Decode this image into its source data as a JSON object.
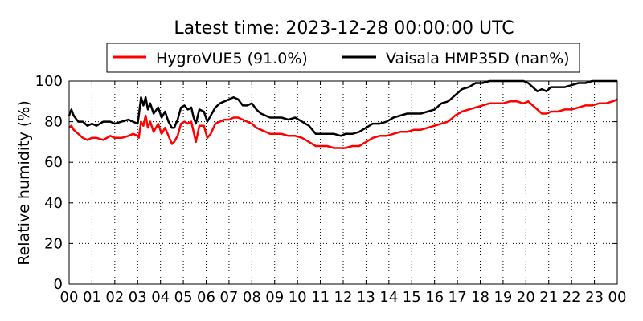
{
  "chart_data": {
    "type": "line",
    "title": "Latest time: 2023-12-28 00:00:00 UTC",
    "xlabel": "",
    "ylabel": "Relative humidity (%)",
    "xlim": [
      0,
      24
    ],
    "ylim": [
      0,
      100
    ],
    "grid": true,
    "legend_position": "top",
    "x_tick_labels": [
      "00",
      "01",
      "02",
      "03",
      "04",
      "05",
      "06",
      "07",
      "08",
      "09",
      "10",
      "11",
      "12",
      "13",
      "14",
      "15",
      "16",
      "17",
      "18",
      "19",
      "20",
      "21",
      "22",
      "23",
      "00"
    ],
    "y_ticks": [
      0,
      20,
      40,
      60,
      80,
      100
    ],
    "series": [
      {
        "name": "HygroVUE5 (91.0%)",
        "color": "#ff0000",
        "x": [
          0,
          0.1,
          0.2,
          0.4,
          0.6,
          0.8,
          1.0,
          1.2,
          1.5,
          1.8,
          2.0,
          2.3,
          2.6,
          2.8,
          3.0,
          3.05,
          3.15,
          3.25,
          3.35,
          3.45,
          3.55,
          3.7,
          3.9,
          4.05,
          4.2,
          4.35,
          4.5,
          4.6,
          4.75,
          4.9,
          5.05,
          5.2,
          5.35,
          5.45,
          5.55,
          5.7,
          5.9,
          6.05,
          6.2,
          6.4,
          6.6,
          6.8,
          7.0,
          7.2,
          7.4,
          7.6,
          7.8,
          8.0,
          8.2,
          8.4,
          8.6,
          8.8,
          9.0,
          9.3,
          9.6,
          9.9,
          10.2,
          10.5,
          10.8,
          11.0,
          11.3,
          11.6,
          11.9,
          12.1,
          12.4,
          12.7,
          13.0,
          13.3,
          13.6,
          13.9,
          14.2,
          14.5,
          14.8,
          15.1,
          15.4,
          15.7,
          16.0,
          16.3,
          16.6,
          16.9,
          17.2,
          17.5,
          17.8,
          18.1,
          18.4,
          18.7,
          19.0,
          19.3,
          19.6,
          19.9,
          20.1,
          20.3,
          20.5,
          20.7,
          20.9,
          21.1,
          21.4,
          21.7,
          22.0,
          22.3,
          22.6,
          22.9,
          23.2,
          23.5,
          23.8,
          24.0
        ],
        "values": [
          77,
          78,
          76,
          74,
          72,
          71,
          72,
          72,
          71,
          73,
          72,
          72,
          73,
          74,
          73,
          72,
          80,
          78,
          83,
          77,
          80,
          75,
          79,
          74,
          77,
          73,
          69,
          70,
          73,
          79,
          80,
          79,
          80,
          75,
          70,
          78,
          78,
          72,
          74,
          79,
          80,
          81,
          81,
          82,
          82,
          81,
          80,
          79,
          77,
          76,
          75,
          74,
          74,
          74,
          73,
          73,
          72,
          70,
          68,
          68,
          68,
          67,
          67,
          67,
          68,
          68,
          70,
          72,
          73,
          73,
          74,
          75,
          75,
          76,
          76,
          77,
          78,
          79,
          80,
          83,
          85,
          86,
          87,
          88,
          89,
          89,
          89,
          90,
          90,
          89,
          90,
          88,
          86,
          84,
          84,
          85,
          85,
          86,
          86,
          87,
          88,
          88,
          89,
          89,
          90,
          91
        ]
      },
      {
        "name": "Vaisala HMP35D (nan%)",
        "color": "#000000",
        "x": [
          0,
          0.1,
          0.2,
          0.4,
          0.6,
          0.8,
          1.0,
          1.2,
          1.5,
          1.8,
          2.0,
          2.3,
          2.6,
          2.8,
          3.0,
          3.05,
          3.15,
          3.25,
          3.35,
          3.45,
          3.55,
          3.7,
          3.9,
          4.05,
          4.2,
          4.35,
          4.5,
          4.6,
          4.75,
          4.9,
          5.05,
          5.2,
          5.35,
          5.45,
          5.55,
          5.7,
          5.9,
          6.05,
          6.2,
          6.4,
          6.6,
          6.8,
          7.0,
          7.2,
          7.4,
          7.6,
          7.8,
          8.0,
          8.2,
          8.4,
          8.6,
          8.8,
          9.0,
          9.3,
          9.6,
          9.9,
          10.2,
          10.5,
          10.8,
          11.0,
          11.3,
          11.6,
          11.9,
          12.1,
          12.4,
          12.7,
          13.0,
          13.3,
          13.6,
          13.9,
          14.2,
          14.5,
          14.8,
          15.1,
          15.4,
          15.7,
          16.0,
          16.3,
          16.6,
          16.9,
          17.2,
          17.5,
          17.8,
          18.1,
          18.4,
          18.7,
          19.0,
          19.3,
          19.6,
          19.9,
          20.1,
          20.3,
          20.5,
          20.7,
          20.9,
          21.1,
          21.4,
          21.7,
          22.0,
          22.3,
          22.6,
          22.9,
          23.2,
          23.5,
          23.8,
          24.0
        ],
        "values": [
          83,
          86,
          83,
          80,
          80,
          78,
          79,
          78,
          80,
          80,
          79,
          80,
          81,
          80,
          79,
          83,
          92,
          88,
          92,
          86,
          89,
          84,
          87,
          82,
          85,
          80,
          77,
          77,
          81,
          87,
          88,
          86,
          87,
          82,
          79,
          86,
          85,
          80,
          83,
          87,
          89,
          90,
          91,
          92,
          91,
          88,
          88,
          89,
          86,
          84,
          83,
          82,
          82,
          82,
          81,
          82,
          80,
          78,
          74,
          74,
          74,
          74,
          73,
          74,
          74,
          75,
          77,
          79,
          79,
          80,
          82,
          83,
          84,
          84,
          84,
          85,
          86,
          89,
          90,
          93,
          96,
          97,
          99,
          99,
          100,
          100,
          100,
          100,
          100,
          100,
          99,
          97,
          95,
          96,
          95,
          97,
          97,
          97,
          98,
          99,
          99,
          100,
          100,
          100,
          100,
          100
        ]
      }
    ]
  }
}
